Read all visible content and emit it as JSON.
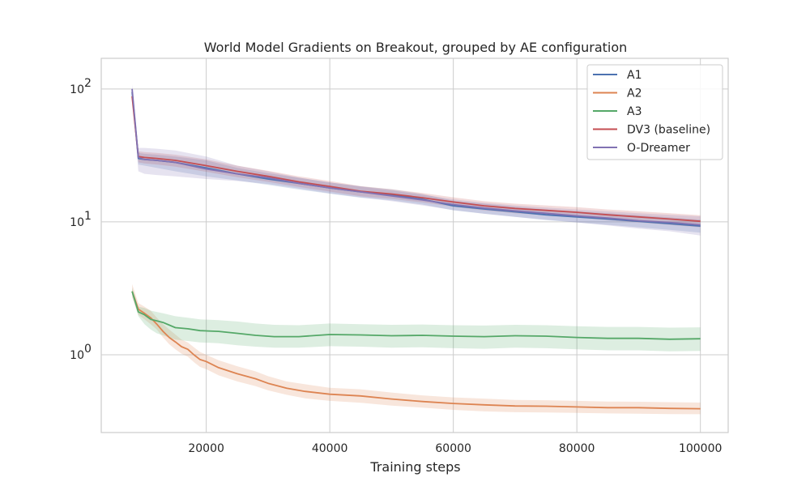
{
  "chart_data": {
    "type": "line",
    "title": "World Model Gradients on Breakout, grouped by AE configuration",
    "xlabel": "Training steps",
    "ylabel": "",
    "yscale": "log",
    "xlim": [
      3000,
      104500
    ],
    "ylim": [
      0.26,
      170
    ],
    "x_ticks": [
      20000,
      40000,
      60000,
      80000,
      100000
    ],
    "x_tick_labels": [
      "20000",
      "40000",
      "60000",
      "80000",
      "100000"
    ],
    "y_ticks": [
      1,
      10,
      100
    ],
    "y_tick_labels": [
      "10",
      "10",
      "10"
    ],
    "y_tick_exponents": [
      "0",
      "1",
      "2"
    ],
    "grid": true,
    "legend_position": "top-right",
    "series": [
      {
        "name": "A1",
        "color": "#4c72b0",
        "x": [
          8000,
          9000,
          10000,
          12000,
          15000,
          20000,
          25000,
          30000,
          35000,
          40000,
          45000,
          50000,
          55000,
          60000,
          65000,
          70000,
          75000,
          80000,
          85000,
          90000,
          95000,
          100000
        ],
        "y": [
          95,
          30,
          29.5,
          29,
          28,
          25.5,
          23,
          21,
          19.5,
          18,
          16.8,
          16,
          14.8,
          13.2,
          12.5,
          11.9,
          11.3,
          10.9,
          10.5,
          10.1,
          9.7,
          9.3
        ],
        "band_low": [
          88,
          27,
          26.5,
          25.5,
          24,
          22,
          20.5,
          19,
          17.5,
          16.3,
          15.2,
          14.5,
          13.5,
          12.2,
          11.5,
          10.9,
          10.3,
          9.9,
          9.5,
          9.1,
          8.7,
          8.3
        ],
        "band_high": [
          102,
          33,
          32.5,
          32,
          31,
          29,
          25.5,
          23.2,
          21.5,
          19.8,
          18.5,
          17.6,
          16.2,
          14.4,
          13.7,
          13,
          12.4,
          12,
          11.6,
          11.2,
          10.8,
          10.4
        ]
      },
      {
        "name": "A2",
        "color": "#dd8452",
        "x": [
          8000,
          9000,
          10000,
          11000,
          12000,
          13000,
          14000,
          15000,
          16000,
          17000,
          18000,
          19000,
          20000,
          22000,
          25000,
          28000,
          30000,
          33000,
          36000,
          40000,
          45000,
          50000,
          55000,
          60000,
          65000,
          70000,
          75000,
          80000,
          85000,
          90000,
          95000,
          100000
        ],
        "y": [
          3.0,
          2.2,
          2.05,
          1.9,
          1.7,
          1.5,
          1.35,
          1.25,
          1.15,
          1.1,
          1.0,
          0.92,
          0.89,
          0.8,
          0.72,
          0.66,
          0.61,
          0.56,
          0.53,
          0.505,
          0.49,
          0.465,
          0.445,
          0.43,
          0.42,
          0.412,
          0.41,
          0.405,
          0.4,
          0.4,
          0.395,
          0.393
        ],
        "band_low": [
          2.7,
          2.0,
          1.85,
          1.7,
          1.55,
          1.35,
          1.2,
          1.1,
          1.02,
          0.97,
          0.88,
          0.81,
          0.78,
          0.7,
          0.63,
          0.58,
          0.54,
          0.5,
          0.47,
          0.45,
          0.435,
          0.415,
          0.4,
          0.385,
          0.375,
          0.37,
          0.368,
          0.365,
          0.362,
          0.36,
          0.358,
          0.357
        ],
        "band_high": [
          3.4,
          2.45,
          2.3,
          2.15,
          1.9,
          1.7,
          1.55,
          1.42,
          1.3,
          1.24,
          1.14,
          1.05,
          1.0,
          0.91,
          0.82,
          0.75,
          0.69,
          0.63,
          0.6,
          0.565,
          0.55,
          0.52,
          0.495,
          0.478,
          0.468,
          0.458,
          0.455,
          0.45,
          0.445,
          0.443,
          0.44,
          0.437
        ]
      },
      {
        "name": "A3",
        "color": "#55a868",
        "x": [
          8000,
          9000,
          10000,
          11000,
          12000,
          13000,
          15000,
          17000,
          19000,
          22000,
          25000,
          28000,
          31000,
          35000,
          40000,
          45000,
          50000,
          55000,
          60000,
          65000,
          70000,
          75000,
          80000,
          85000,
          90000,
          95000,
          100000
        ],
        "y": [
          3.0,
          2.1,
          2.0,
          1.85,
          1.8,
          1.75,
          1.6,
          1.57,
          1.52,
          1.5,
          1.45,
          1.4,
          1.37,
          1.37,
          1.42,
          1.41,
          1.39,
          1.4,
          1.38,
          1.37,
          1.39,
          1.38,
          1.35,
          1.33,
          1.33,
          1.31,
          1.32
        ],
        "band_low": [
          2.8,
          1.95,
          1.7,
          1.55,
          1.45,
          1.4,
          1.3,
          1.27,
          1.24,
          1.22,
          1.18,
          1.15,
          1.13,
          1.13,
          1.16,
          1.15,
          1.13,
          1.14,
          1.12,
          1.11,
          1.13,
          1.12,
          1.1,
          1.08,
          1.08,
          1.06,
          1.07
        ],
        "band_high": [
          3.2,
          2.3,
          2.25,
          2.15,
          2.1,
          2.05,
          1.95,
          1.9,
          1.85,
          1.82,
          1.78,
          1.72,
          1.68,
          1.67,
          1.72,
          1.7,
          1.68,
          1.69,
          1.67,
          1.66,
          1.68,
          1.67,
          1.64,
          1.62,
          1.62,
          1.6,
          1.61
        ]
      },
      {
        "name": "DV3 (baseline)",
        "color": "#c44e52",
        "x": [
          8000,
          9000,
          10000,
          12000,
          15000,
          20000,
          25000,
          30000,
          35000,
          40000,
          45000,
          50000,
          55000,
          60000,
          65000,
          70000,
          75000,
          80000,
          85000,
          90000,
          95000,
          100000
        ],
        "y": [
          88,
          31,
          30.5,
          30,
          29,
          26.5,
          24,
          22,
          20,
          18.5,
          17,
          16.2,
          15.2,
          14.1,
          13.2,
          12.6,
          12.2,
          11.8,
          11.3,
          10.9,
          10.5,
          10.1
        ],
        "band_low": [
          82,
          28,
          27.5,
          27,
          26,
          23.8,
          21.7,
          20,
          18.3,
          16.9,
          15.6,
          14.9,
          14,
          13,
          12.2,
          11.6,
          11.2,
          10.8,
          10.3,
          9.9,
          9.5,
          9.1
        ],
        "band_high": [
          95,
          34,
          33.5,
          33,
          32,
          29.5,
          26.5,
          24.2,
          22,
          20.3,
          18.6,
          17.6,
          16.5,
          15.3,
          14.3,
          13.7,
          13.3,
          12.9,
          12.4,
          12,
          11.6,
          11.2
        ]
      },
      {
        "name": "O-Dreamer",
        "color": "#8172b3",
        "x": [
          8000,
          9000,
          10000,
          12000,
          15000,
          20000,
          25000,
          30000,
          35000,
          40000,
          45000,
          50000,
          55000,
          60000,
          65000,
          70000,
          75000,
          80000,
          85000,
          90000,
          95000,
          100000
        ],
        "y": [
          100,
          30.5,
          29.5,
          29,
          28,
          25,
          23,
          21.5,
          19.5,
          18,
          16.8,
          15.7,
          14.6,
          13.5,
          12.7,
          12.1,
          11.6,
          11.1,
          10.7,
          10.2,
          9.9,
          9.5
        ],
        "band_low": [
          92,
          24,
          23,
          22.5,
          22,
          21,
          20.3,
          19.3,
          17.8,
          16.4,
          15.3,
          14.3,
          13.3,
          12.3,
          11.5,
          10.9,
          10.4,
          9.9,
          9.4,
          8.9,
          8.5,
          7.9
        ],
        "band_high": [
          108,
          36,
          36,
          35.5,
          34.5,
          31,
          26.5,
          24,
          21.5,
          19.8,
          18.5,
          17.2,
          16,
          14.8,
          13.9,
          13.3,
          12.8,
          12.4,
          12,
          11.6,
          11.3,
          11
        ]
      }
    ]
  }
}
